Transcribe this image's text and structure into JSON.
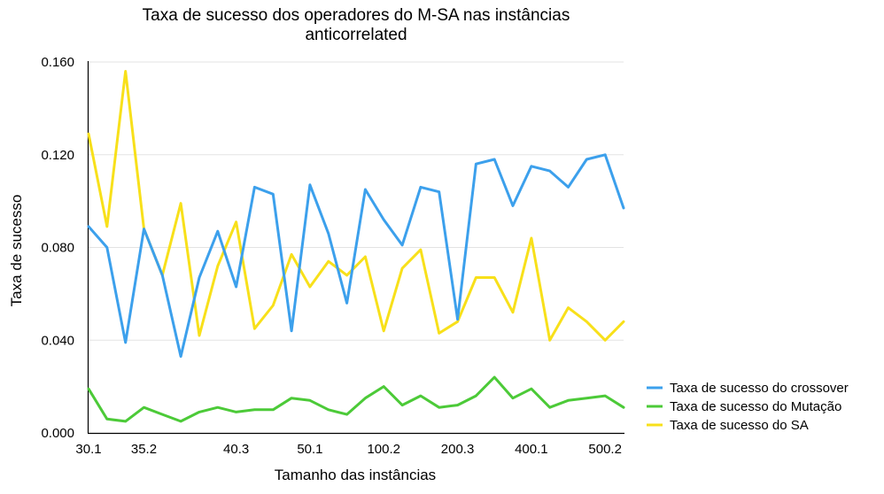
{
  "chart_data": {
    "type": "line",
    "title": "Taxa de sucesso dos operadores do M-SA nas instâncias anticorrelated",
    "title_lines": [
      "Taxa de sucesso dos operadores do M-SA nas instâncias",
      "anticorrelated"
    ],
    "xlabel": "Tamanho das instâncias",
    "ylabel": "Taxa de sucesso",
    "ylim": [
      0,
      0.16
    ],
    "yticks": [
      "0.000",
      "0.040",
      "0.080",
      "0.120",
      "0.160"
    ],
    "ytick_values": [
      0,
      0.04,
      0.08,
      0.12,
      0.16
    ],
    "xtick_labels": [
      {
        "index": 0,
        "label": "30.1"
      },
      {
        "index": 3,
        "label": "35.2"
      },
      {
        "index": 8,
        "label": "40.3"
      },
      {
        "index": 12,
        "label": "50.1"
      },
      {
        "index": 16,
        "label": "100.2"
      },
      {
        "index": 20,
        "label": "200.3"
      },
      {
        "index": 24,
        "label": "400.1"
      },
      {
        "index": 28,
        "label": "500.2"
      }
    ],
    "n_points": 30,
    "grid": true,
    "legend_position": "right",
    "series": [
      {
        "name": "Taxa de sucesso do crossover",
        "color": "#3ca0ec",
        "values": [
          0.089,
          0.08,
          0.039,
          0.088,
          0.068,
          0.033,
          0.067,
          0.087,
          0.063,
          0.106,
          0.103,
          0.044,
          0.107,
          0.086,
          0.056,
          0.105,
          0.092,
          0.081,
          0.106,
          0.104,
          0.049,
          0.116,
          0.118,
          0.098,
          0.115,
          0.113,
          0.106,
          0.118,
          0.12,
          0.097
        ]
      },
      {
        "name": "Taxa de sucesso do Mutação",
        "color": "#4cca38",
        "values": [
          0.019,
          0.006,
          0.005,
          0.011,
          0.008,
          0.005,
          0.009,
          0.011,
          0.009,
          0.01,
          0.01,
          0.015,
          0.014,
          0.01,
          0.008,
          0.015,
          0.02,
          0.012,
          0.016,
          0.011,
          0.012,
          0.016,
          0.024,
          0.015,
          0.019,
          0.011,
          0.014,
          0.015,
          0.016,
          0.011
        ]
      },
      {
        "name": "Taxa de sucesso do SA",
        "color": "#f8e01a",
        "values": [
          0.129,
          0.089,
          0.156,
          0.088,
          0.068,
          0.099,
          0.042,
          0.072,
          0.091,
          0.045,
          0.055,
          0.077,
          0.063,
          0.074,
          0.068,
          0.076,
          0.044,
          0.071,
          0.079,
          0.043,
          0.048,
          0.067,
          0.067,
          0.052,
          0.084,
          0.04,
          0.054,
          0.048,
          0.04,
          0.048
        ]
      }
    ]
  }
}
